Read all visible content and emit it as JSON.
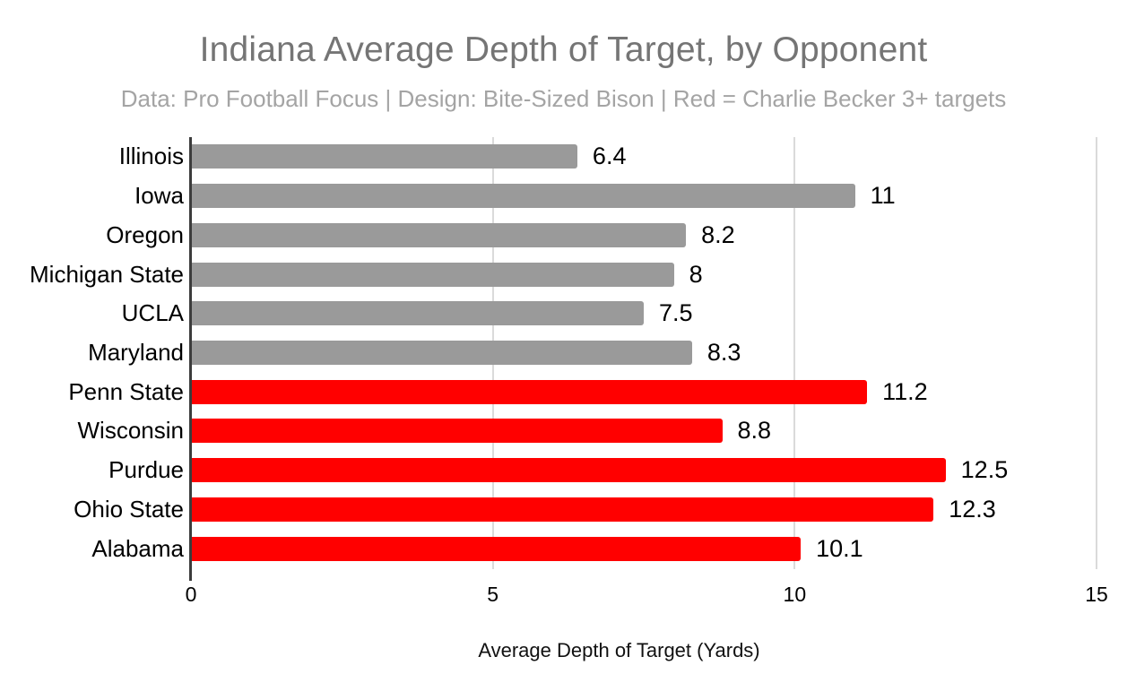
{
  "chart_data": {
    "type": "bar",
    "orientation": "horizontal",
    "title": "Indiana Average Depth of Target, by Opponent",
    "subtitle": "Data: Pro Football Focus | Design: Bite-Sized Bison | Red = Charlie Becker 3+ targets",
    "xlabel": "Average Depth of Target (Yards)",
    "ylabel": "",
    "xlim": [
      0,
      15
    ],
    "xticks": [
      0,
      5,
      10,
      15
    ],
    "xtick_labels": [
      "0",
      "5",
      "10",
      "15"
    ],
    "grid": true,
    "legend": false,
    "categories": [
      "Illinois",
      "Iowa",
      "Oregon",
      "Michigan State",
      "UCLA",
      "Maryland",
      "Penn State",
      "Wisconsin",
      "Purdue",
      "Ohio State",
      "Alabama"
    ],
    "values": [
      6.4,
      11,
      8.2,
      8,
      7.5,
      8.3,
      11.2,
      8.8,
      12.5,
      12.3,
      10.1
    ],
    "value_labels": [
      "6.4",
      "11",
      "8.2",
      "8",
      "7.5",
      "8.3",
      "11.2",
      "8.8",
      "12.5",
      "12.3",
      "10.1"
    ],
    "bar_colors": [
      "gray",
      "gray",
      "gray",
      "gray",
      "gray",
      "gray",
      "red",
      "red",
      "red",
      "red",
      "red"
    ],
    "colors": {
      "gray": "#9a9a9a",
      "red": "#ff0000",
      "title_text": "#757575",
      "subtitle_text": "#a4a4a4",
      "label_text": "#000000",
      "gridline": "#dadada",
      "axis_line": "#3c3c3c",
      "background": "#ffffff"
    }
  }
}
